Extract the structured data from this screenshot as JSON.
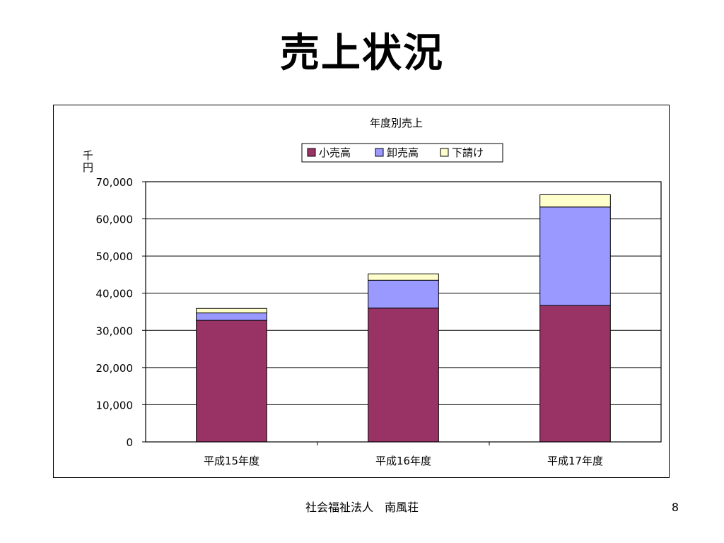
{
  "slide": {
    "title": "売上状況",
    "footer": "社会福祉法人　南風荘",
    "page_number": "8"
  },
  "chart_data": {
    "type": "bar",
    "stacked": true,
    "title": "年度別売上",
    "ylabel": "千円",
    "xlabel": "",
    "categories": [
      "平成15年度",
      "平成16年度",
      "平成17年度"
    ],
    "series": [
      {
        "name": "小売高",
        "color": "#993366",
        "values": [
          32700,
          36000,
          36700
        ]
      },
      {
        "name": "卸売高",
        "color": "#9999ff",
        "values": [
          2000,
          7500,
          26500
        ]
      },
      {
        "name": "下請け",
        "color": "#ffffcc",
        "values": [
          1200,
          1700,
          3300
        ]
      }
    ],
    "ylim": [
      0,
      70000
    ],
    "yticks": [
      0,
      10000,
      20000,
      30000,
      40000,
      50000,
      60000,
      70000
    ],
    "ytick_labels": [
      "0",
      "10,000",
      "20,000",
      "30,000",
      "40,000",
      "50,000",
      "60,000",
      "70,000"
    ],
    "grid": true,
    "legend_position": "top-center"
  }
}
